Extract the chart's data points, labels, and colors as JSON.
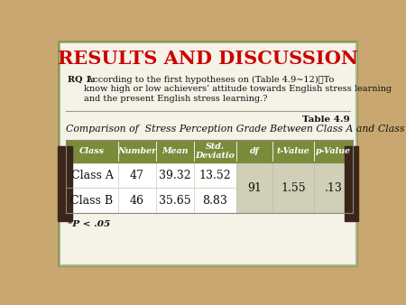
{
  "title": "RESULTS AND DISCUSSION",
  "title_color": "#cc0000",
  "bg_color": "#c8a870",
  "card_color": "#f5f2e8",
  "card_border_color": "#8a9a5a",
  "card_border_color2": "#b0b890",
  "rq_bold": "RQ 1:",
  "rq_text": " According to the first hypotheses on (Table 4.9~12)：To\nknow high or low achievers’ attitude towards English stress learning\nand the present English stress learning.?",
  "table_label": "Table 4.9",
  "table_caption": "Comparison of  Stress Perception Grade Between Class A and Class B",
  "header_bg": "#7a8c3a",
  "header_text_color": "#ffffff",
  "row_bg": "#ffffff",
  "merged_bg": "#d0d0b8",
  "col_headers": [
    "Class",
    "Number",
    "Mean",
    "Std.\nDeviatio",
    "df",
    "t-Value",
    "p-Value"
  ],
  "row1": [
    "Class A",
    "47",
    "39.32",
    "13.52"
  ],
  "row2": [
    "Class B",
    "46",
    "35.65",
    "8.83"
  ],
  "merged_vals": [
    "91",
    "1.55",
    ".13"
  ],
  "footnote": "*P < .05",
  "divider_color": "#9a9a8a",
  "dark_side_color": "#3a2518"
}
